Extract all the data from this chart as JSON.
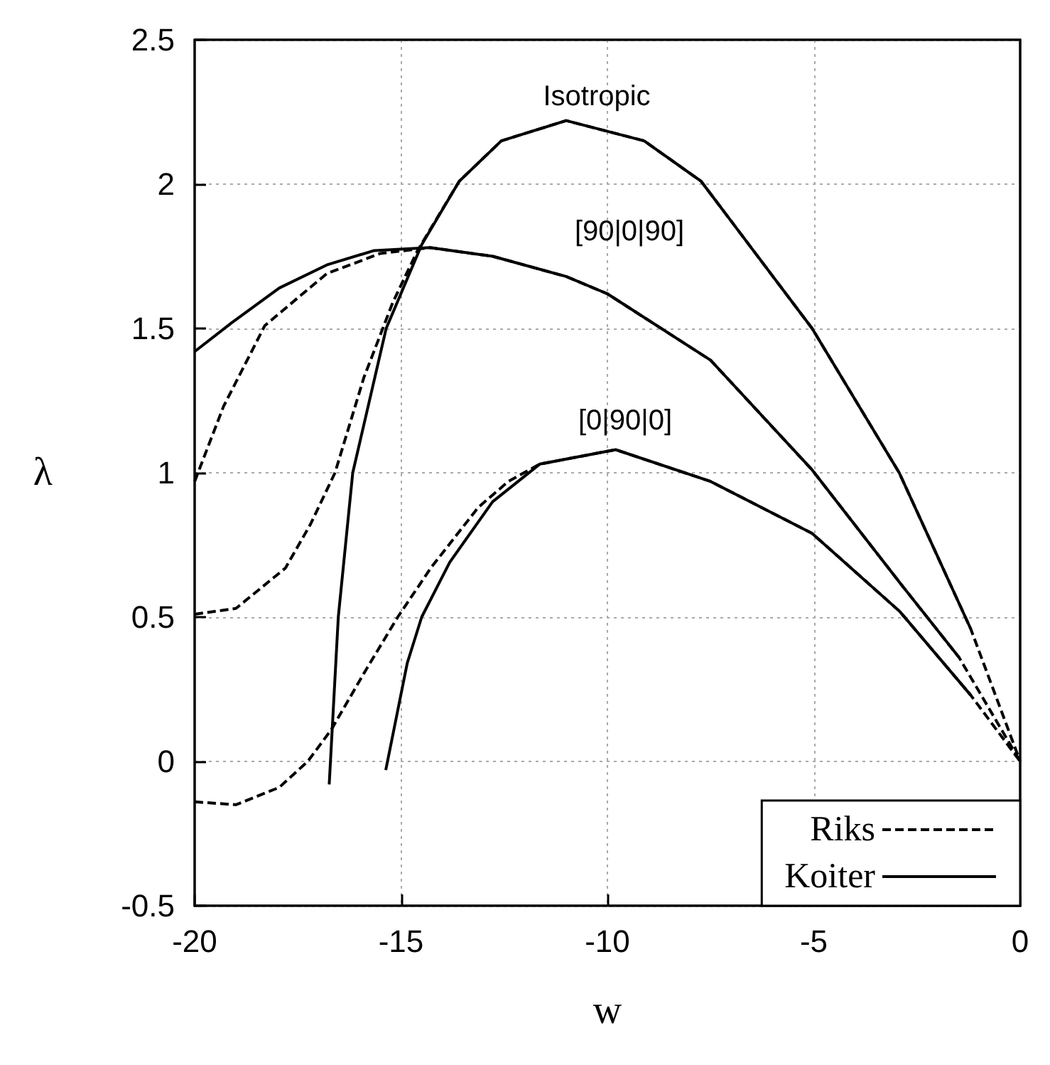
{
  "chart_data": {
    "type": "line",
    "xlabel": "w",
    "ylabel": "λ",
    "xlim": [
      -20,
      0
    ],
    "xticks": [
      -20,
      -15,
      -10,
      -5,
      0
    ],
    "ylim": [
      -0.5,
      2.5
    ],
    "yticks": [
      -0.5,
      0,
      0.5,
      1,
      1.5,
      2,
      2.5
    ],
    "grid": true,
    "legend": "bottom right",
    "marker": "none",
    "annotations": [
      "Isotropic",
      "[90|0|90]",
      "[0|90|0]"
    ],
    "series": [
      {
        "name": "Riks",
        "color": "#000000",
        "line_style": "dashed",
        "x": [
          -20,
          -19,
          -17.8,
          -17.2,
          -16.6,
          -15.9,
          -15.2,
          -14.6,
          -13.59,
          -12.57,
          -11,
          -9.11,
          -7.73,
          -5.04,
          -2.93,
          -1.2,
          0
        ],
        "values": [
          0.51,
          0.53,
          0.67,
          0.82,
          1.0,
          1.33,
          1.59,
          1.77,
          2.01,
          2.15,
          2.22,
          2.15,
          2.01,
          1.5,
          1.0,
          0.46,
          0
        ]
      },
      {
        "color": "#000000",
        "line_style": "dashed",
        "x": [
          -20,
          -19.3,
          -18.3,
          -16.8,
          -15.5,
          -14.3,
          -12.78,
          -11,
          -10,
          -7.5,
          -5.04,
          -2.92,
          -1.48,
          0
        ],
        "values": [
          0.97,
          1.23,
          1.51,
          1.69,
          1.76,
          1.78,
          1.75,
          1.68,
          1.62,
          1.39,
          1.01,
          0.62,
          0.36,
          0
        ]
      },
      {
        "color": "#000000",
        "line_style": "dashed",
        "x": [
          -20,
          -19,
          -17.95,
          -17.26,
          -16.69,
          -15.88,
          -15.08,
          -14.28,
          -13.13,
          -12.4,
          -11.64,
          -9.8,
          -7.5,
          -5.04,
          -2.92,
          -1.2,
          0
        ],
        "values": [
          -0.14,
          -0.15,
          -0.09,
          0,
          0.11,
          0.31,
          0.5,
          0.67,
          0.88,
          0.97,
          1.03,
          1.08,
          0.97,
          0.79,
          0.52,
          0.23,
          0
        ]
      },
      {
        "name": "Koiter",
        "color": "#000000",
        "line_style": "solid",
        "x": [
          -16.74,
          -16.52,
          -16.17,
          -15.36,
          -14.5,
          -13.59,
          -12.57,
          -11,
          -9.11,
          -7.73,
          -5.04,
          -2.93,
          -1.2
        ],
        "values": [
          -0.08,
          0.5,
          1.0,
          1.5,
          1.79,
          2.01,
          2.15,
          2.22,
          2.15,
          2.01,
          1.5,
          1.0,
          0.46
        ]
      },
      {
        "color": "#000000",
        "line_style": "solid",
        "x": [
          -20,
          -19.1,
          -17.95,
          -16.8,
          -15.65,
          -14.3,
          -12.78,
          -11,
          -10,
          -7.5,
          -5.04,
          -2.92,
          -1.48
        ],
        "values": [
          1.42,
          1.52,
          1.64,
          1.72,
          1.77,
          1.78,
          1.75,
          1.68,
          1.62,
          1.39,
          1.01,
          0.62,
          0.36
        ]
      },
      {
        "color": "#000000",
        "line_style": "solid",
        "x": [
          -15.37,
          -14.85,
          -14.5,
          -13.82,
          -12.78,
          -11.64,
          -9.8,
          -7.5,
          -5.04,
          -2.92,
          -1.2
        ],
        "values": [
          -0.03,
          0.34,
          0.5,
          0.69,
          0.9,
          1.03,
          1.08,
          0.97,
          0.79,
          0.52,
          0.23
        ]
      }
    ]
  }
}
